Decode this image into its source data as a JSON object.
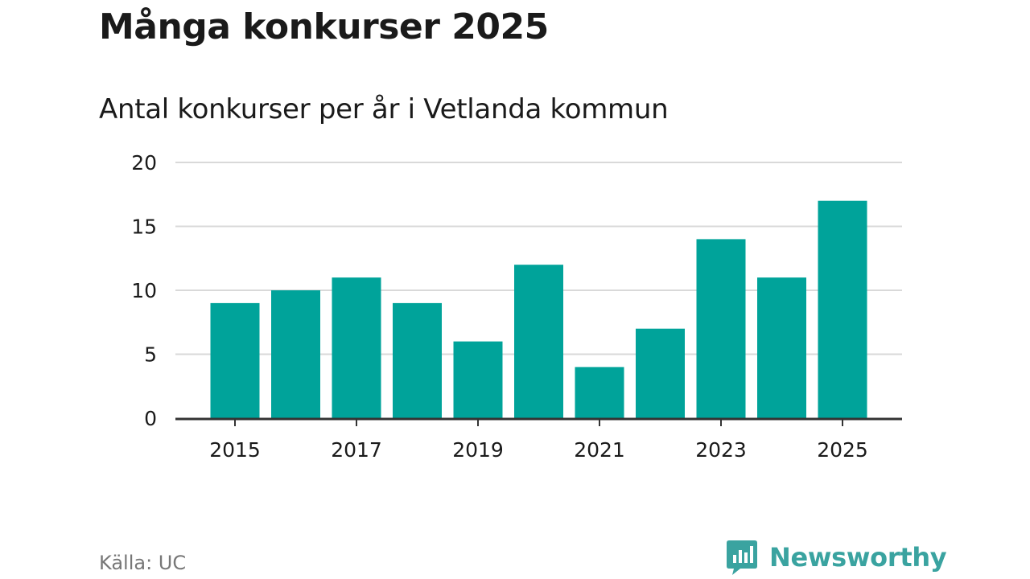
{
  "colors": {
    "bar": "#00a39a",
    "grid": "#d9d9d9",
    "axis": "#333333",
    "text": "#1a1a1a",
    "source": "#777777",
    "brand": "#3aa3a0"
  },
  "footer": {
    "source": "Källa: UC",
    "brand_name": "Newsworthy",
    "brand_icon": "newsworthy-logo-icon"
  },
  "chart_data": {
    "type": "bar",
    "title": "Många konkurser 2025",
    "subtitle": "Antal konkurser per år i Vetlanda kommun",
    "xlabel": "",
    "ylabel": "",
    "categories": [
      "2015",
      "2016",
      "2017",
      "2018",
      "2019",
      "2020",
      "2021",
      "2022",
      "2023",
      "2024",
      "2025"
    ],
    "values": [
      9,
      10,
      11,
      9,
      6,
      12,
      4,
      7,
      14,
      11,
      17
    ],
    "x_tick_labels": [
      "2015",
      "2017",
      "2019",
      "2021",
      "2023",
      "2025"
    ],
    "y_ticks": [
      0,
      5,
      10,
      15,
      20
    ],
    "ylim": [
      0,
      20
    ],
    "grid": true,
    "legend": "none"
  }
}
